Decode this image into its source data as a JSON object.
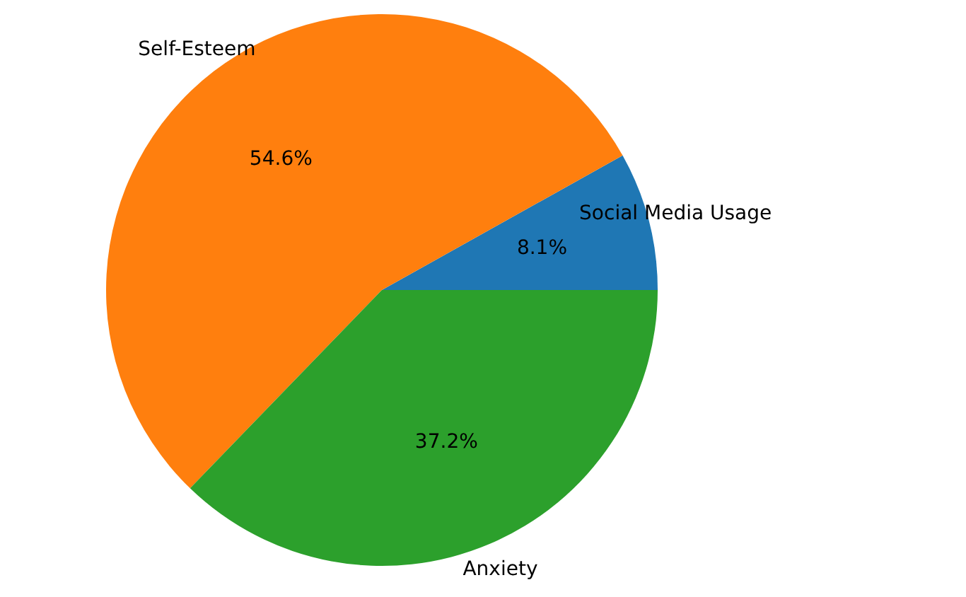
{
  "chart_data": {
    "type": "pie",
    "categories": [
      "Social Media Usage",
      "Self-Esteem",
      "Anxiety"
    ],
    "values": [
      8.1,
      54.6,
      37.2
    ],
    "value_labels": [
      "8.1%",
      "54.6%",
      "37.2%"
    ],
    "colors": [
      "#1f77b4",
      "#ff7f0e",
      "#2ca02c"
    ]
  }
}
